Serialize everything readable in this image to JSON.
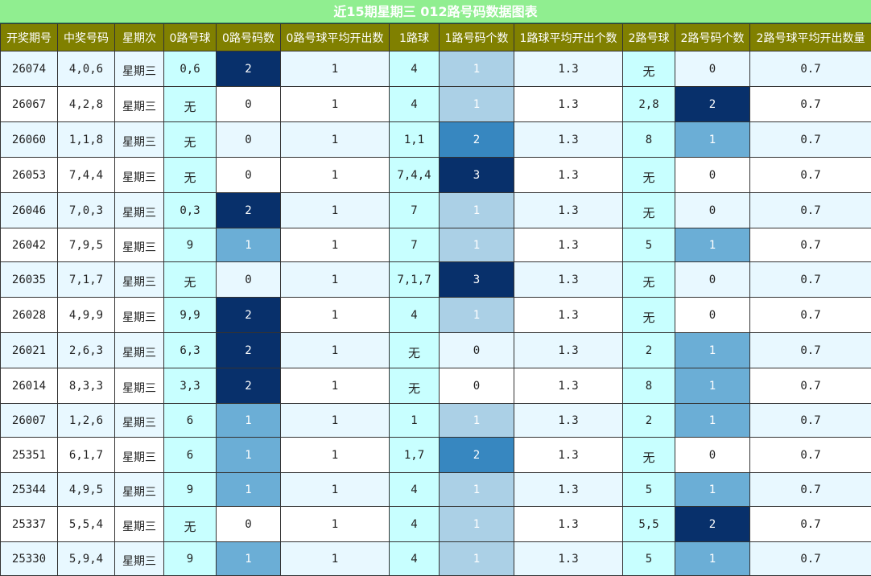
{
  "chart_data": {
    "type": "table",
    "title": "近15期星期三 012路号码数据图表",
    "columns": [
      "开奖期号",
      "中奖号码",
      "星期次",
      "0路号球",
      "0路号码数",
      "0路号球平均开出数",
      "1路球",
      "1路号码个数",
      "1路球平均开出个数",
      "2路号球",
      "2路号码个数",
      "2路号球平均开出数量"
    ],
    "count_colors": {
      "0": "#ffffff",
      "1": "#6baed6",
      "2": "#08306b",
      "3": "#08306b"
    },
    "count_colors_route1": {
      "1": "#abd0e6",
      "2": "#3787c0",
      "3": "#08306b"
    },
    "count_colors_route2": {
      "1": "#6baed6",
      "2": "#08306b"
    },
    "rows": [
      [
        "26074",
        "4,0,6",
        "星期三",
        "0,6",
        "2",
        "1",
        "4",
        "1",
        "1.3",
        "无",
        "0",
        "0.7"
      ],
      [
        "26067",
        "4,2,8",
        "星期三",
        "无",
        "0",
        "1",
        "4",
        "1",
        "1.3",
        "2,8",
        "2",
        "0.7"
      ],
      [
        "26060",
        "1,1,8",
        "星期三",
        "无",
        "0",
        "1",
        "1,1",
        "2",
        "1.3",
        "8",
        "1",
        "0.7"
      ],
      [
        "26053",
        "7,4,4",
        "星期三",
        "无",
        "0",
        "1",
        "7,4,4",
        "3",
        "1.3",
        "无",
        "0",
        "0.7"
      ],
      [
        "26046",
        "7,0,3",
        "星期三",
        "0,3",
        "2",
        "1",
        "7",
        "1",
        "1.3",
        "无",
        "0",
        "0.7"
      ],
      [
        "26042",
        "7,9,5",
        "星期三",
        "9",
        "1",
        "1",
        "7",
        "1",
        "1.3",
        "5",
        "1",
        "0.7"
      ],
      [
        "26035",
        "7,1,7",
        "星期三",
        "无",
        "0",
        "1",
        "7,1,7",
        "3",
        "1.3",
        "无",
        "0",
        "0.7"
      ],
      [
        "26028",
        "4,9,9",
        "星期三",
        "9,9",
        "2",
        "1",
        "4",
        "1",
        "1.3",
        "无",
        "0",
        "0.7"
      ],
      [
        "26021",
        "2,6,3",
        "星期三",
        "6,3",
        "2",
        "1",
        "无",
        "0",
        "1.3",
        "2",
        "1",
        "0.7"
      ],
      [
        "26014",
        "8,3,3",
        "星期三",
        "3,3",
        "2",
        "1",
        "无",
        "0",
        "1.3",
        "8",
        "1",
        "0.7"
      ],
      [
        "26007",
        "1,2,6",
        "星期三",
        "6",
        "1",
        "1",
        "1",
        "1",
        "1.3",
        "2",
        "1",
        "0.7"
      ],
      [
        "25351",
        "6,1,7",
        "星期三",
        "6",
        "1",
        "1",
        "1,7",
        "2",
        "1.3",
        "无",
        "0",
        "0.7"
      ],
      [
        "25344",
        "4,9,5",
        "星期三",
        "9",
        "1",
        "1",
        "4",
        "1",
        "1.3",
        "5",
        "1",
        "0.7"
      ],
      [
        "25337",
        "5,5,4",
        "星期三",
        "无",
        "0",
        "1",
        "4",
        "1",
        "1.3",
        "5,5",
        "2",
        "0.7"
      ],
      [
        "25330",
        "5,9,4",
        "星期三",
        "9",
        "1",
        "1",
        "4",
        "1",
        "1.3",
        "5",
        "1",
        "0.7"
      ]
    ]
  }
}
